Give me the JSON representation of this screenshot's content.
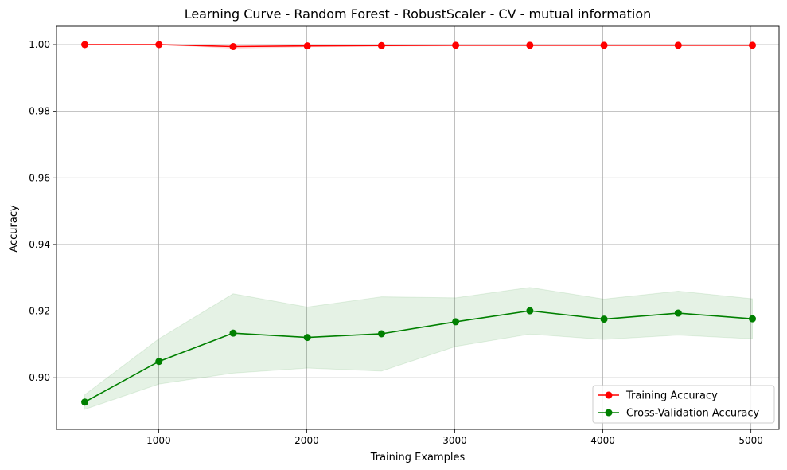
{
  "chart_data": {
    "type": "line",
    "title": "Learning Curve - Random Forest - RobustScaler - CV - mutual information",
    "xlabel": "Training Examples",
    "ylabel": "Accuracy",
    "xlim": [
      310,
      5190
    ],
    "ylim": [
      0.8845,
      1.0055
    ],
    "grid": true,
    "legend_position": "lower-right",
    "x_ticks": [
      {
        "value": 1000,
        "label": "1000"
      },
      {
        "value": 2000,
        "label": "2000"
      },
      {
        "value": 3000,
        "label": "3000"
      },
      {
        "value": 4000,
        "label": "4000"
      },
      {
        "value": 5000,
        "label": "5000"
      }
    ],
    "y_ticks": [
      {
        "value": 0.9,
        "label": "0.90"
      },
      {
        "value": 0.92,
        "label": "0.92"
      },
      {
        "value": 0.94,
        "label": "0.94"
      },
      {
        "value": 0.96,
        "label": "0.96"
      },
      {
        "value": 0.98,
        "label": "0.98"
      },
      {
        "value": 1.0,
        "label": "1.00"
      }
    ],
    "x": [
      501,
      1002,
      1503,
      2004,
      2505,
      3006,
      3507,
      4008,
      4509,
      5010
    ],
    "series": [
      {
        "name": "Training Accuracy",
        "color": "#ff0000",
        "band_color": "#ff0000",
        "values": [
          1.0,
          1.0,
          0.9994,
          0.9996,
          0.9997,
          0.9998,
          0.9998,
          0.9998,
          0.9998,
          0.9998
        ],
        "lower": [
          1.0,
          1.0,
          0.9989,
          0.9993,
          0.9995,
          0.9996,
          0.9996,
          0.9996,
          0.9996,
          0.9996
        ],
        "upper": [
          1.0,
          1.0,
          0.9999,
          0.9999,
          0.9999,
          1.0,
          1.0,
          1.0,
          1.0,
          1.0
        ]
      },
      {
        "name": "Cross-Validation Accuracy",
        "color": "#008000",
        "band_color": "#008000",
        "values": [
          0.8927,
          0.9049,
          0.9134,
          0.9121,
          0.9132,
          0.9168,
          0.9201,
          0.9176,
          0.9194,
          0.9177
        ],
        "lower": [
          0.8905,
          0.8981,
          0.9014,
          0.9029,
          0.902,
          0.9094,
          0.9131,
          0.9115,
          0.9128,
          0.9117
        ],
        "upper": [
          0.8949,
          0.9117,
          0.9252,
          0.9212,
          0.9243,
          0.924,
          0.9271,
          0.9236,
          0.926,
          0.9237
        ]
      }
    ]
  }
}
